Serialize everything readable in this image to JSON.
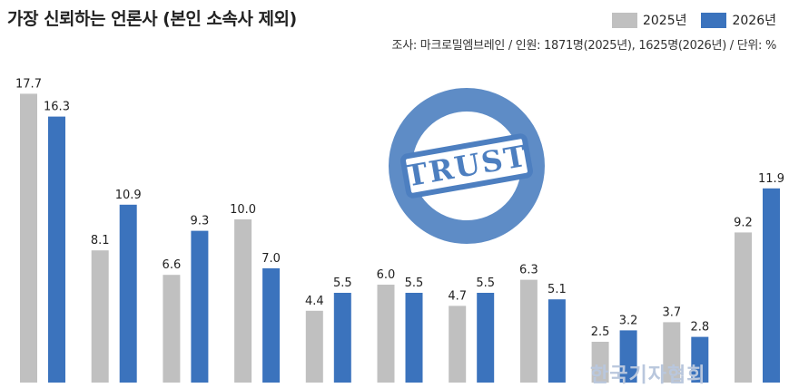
{
  "title": "가장 신뢰하는 언론사 (본인 소속사 제외)",
  "source": "조사: 마크로밀엠브레인 / 인원: 1871명(2025년), 1625명(2026년) / 단위: %",
  "stamp_text": "TRUST",
  "watermark_text": "한국기자협회",
  "colors": {
    "y2025": "#c0c0c0",
    "y2026": "#3b73bd",
    "stamp": "#4d7fc0"
  },
  "chart_data": {
    "type": "bar",
    "title": "가장 신뢰하는 언론사 (본인 소속사 제외)",
    "categories": [
      "",
      "",
      "",
      "",
      "",
      "",
      "",
      "",
      "",
      "",
      ""
    ],
    "series": [
      {
        "name": "2025년",
        "values": [
          17.7,
          8.1,
          6.6,
          10.0,
          4.4,
          6.0,
          4.7,
          6.3,
          2.5,
          3.7,
          9.2
        ]
      },
      {
        "name": "2026년",
        "values": [
          16.3,
          10.9,
          9.3,
          7.0,
          5.5,
          5.5,
          5.5,
          5.1,
          3.2,
          2.8,
          11.9
        ]
      }
    ],
    "value_labels": [
      [
        "17.7",
        "8.1",
        "6.6",
        "10.0",
        "4.4",
        "6.0",
        "4.7",
        "6.3",
        "2.5",
        "3.7",
        "9.2"
      ],
      [
        "16.3",
        "10.9",
        "9.3",
        "7.0",
        "5.5",
        "5.5",
        "5.5",
        "5.1",
        "3.2",
        "2.8",
        "11.9"
      ]
    ],
    "ylim": [
      0,
      20
    ],
    "grid": false,
    "legend_position": "top-right",
    "xlabel": "",
    "ylabel": ""
  }
}
